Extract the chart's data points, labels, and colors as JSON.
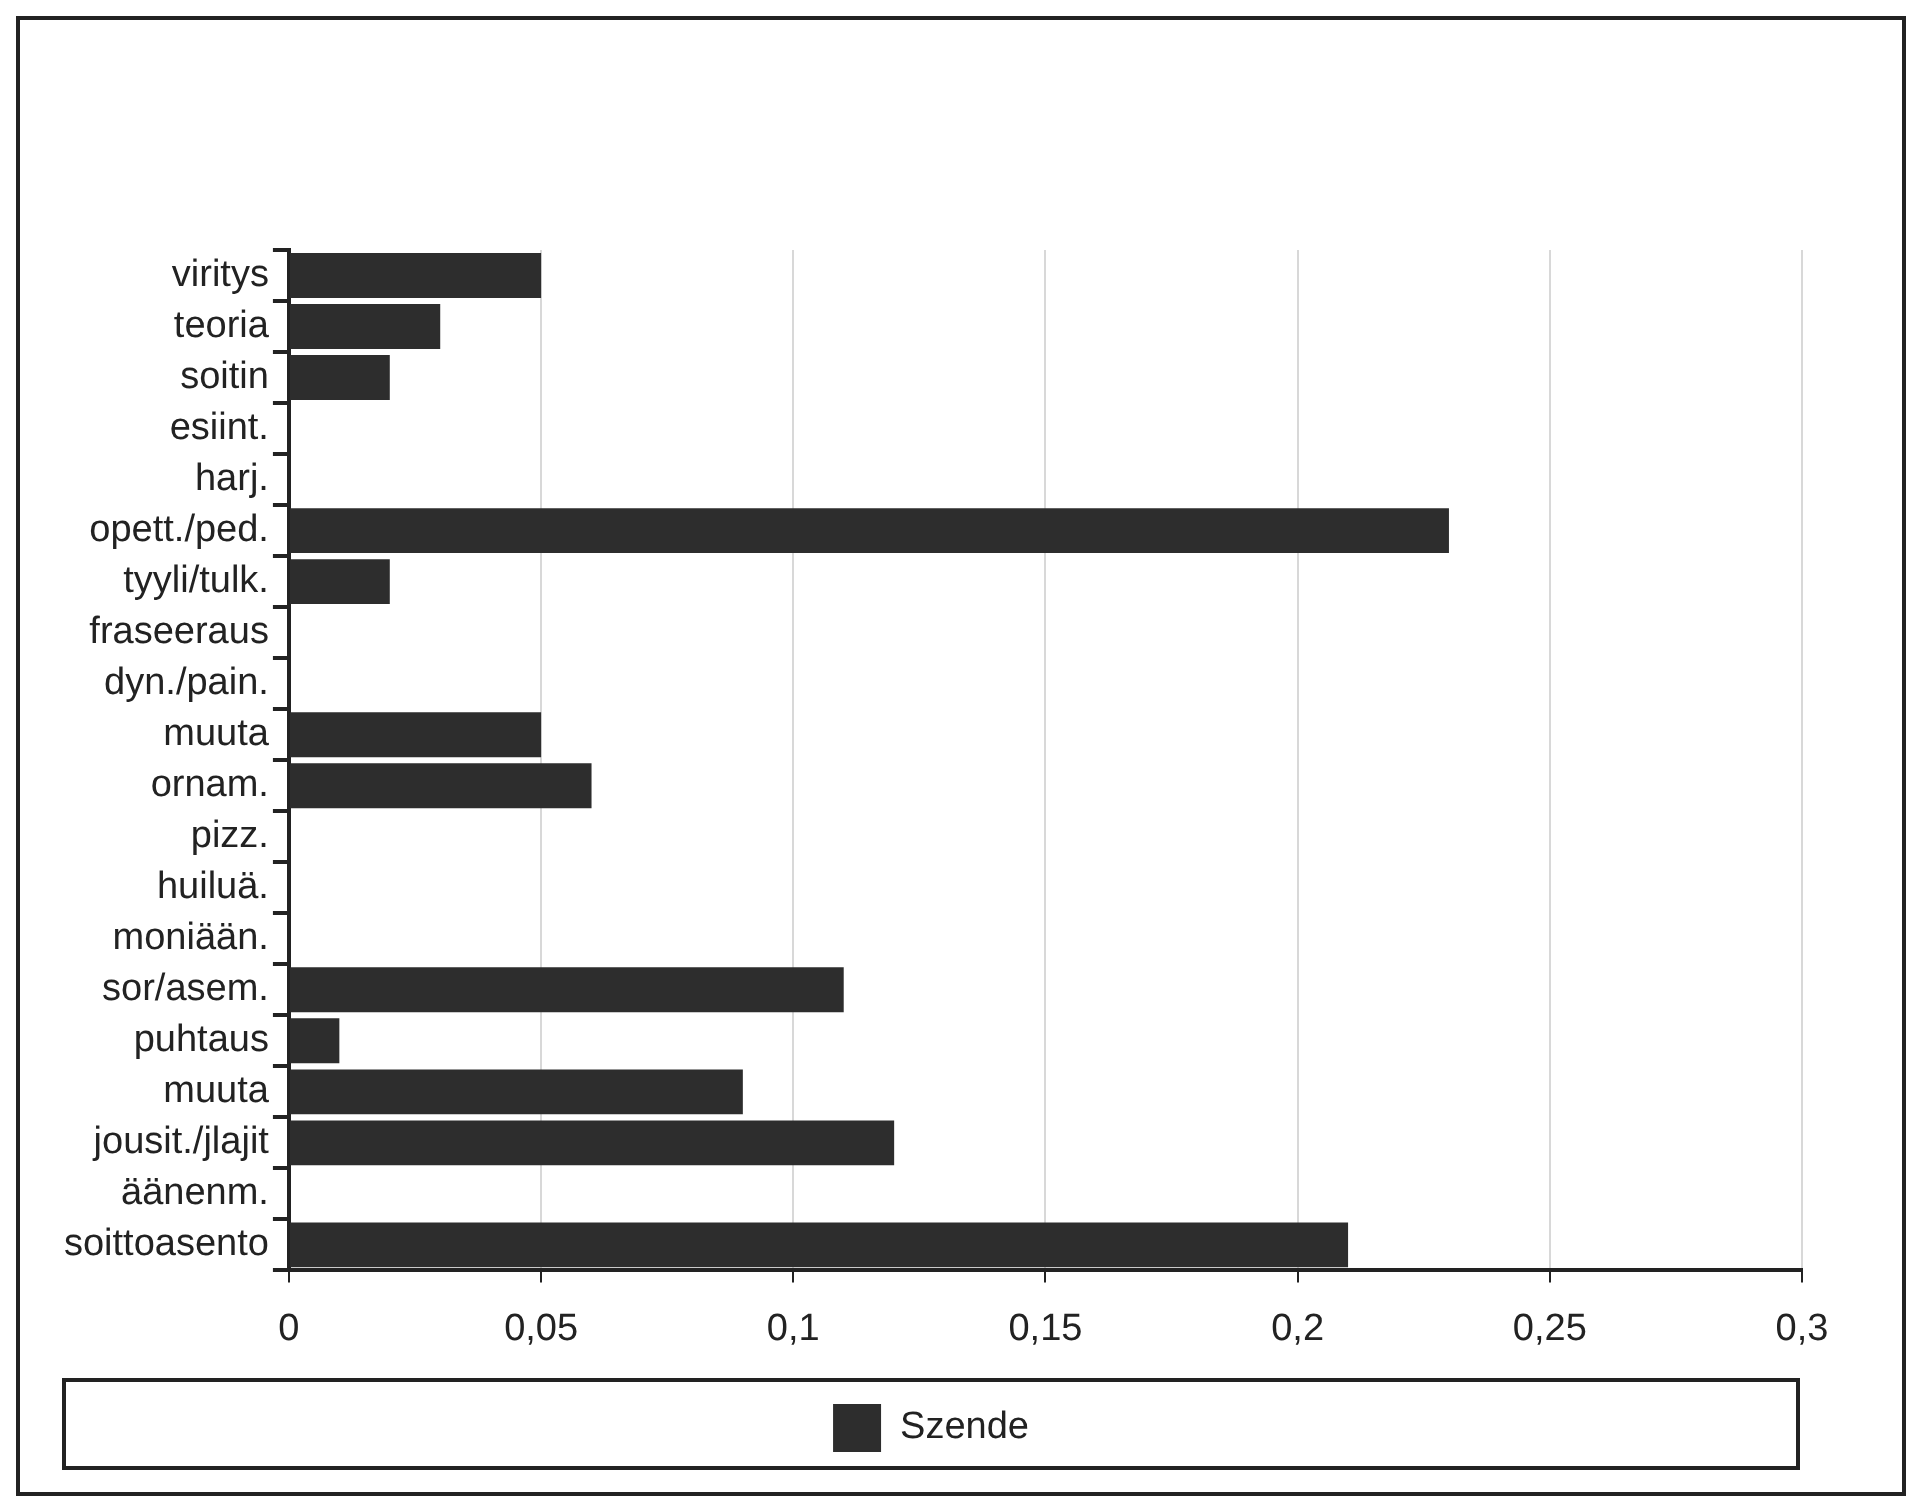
{
  "chart_data": {
    "type": "bar",
    "orientation": "horizontal",
    "categories": [
      "viritys",
      "teoria",
      "soitin",
      "esiint.",
      "harj.",
      "opett./ped.",
      "tyyli/tulk.",
      "fraseeraus",
      "dyn./pain.",
      "muuta",
      "ornam.",
      "pizz.",
      "huiluä.",
      "moniään.",
      "sor/asem.",
      "puhtaus",
      "muuta",
      "jousit./jlajit",
      "äänenm.",
      "soittoasento"
    ],
    "series": [
      {
        "name": "Szende",
        "color": "#2d2d2d",
        "values": [
          0.05,
          0.03,
          0.02,
          0,
          0,
          0.23,
          0.02,
          0,
          0,
          0.05,
          0.06,
          0,
          0,
          0,
          0.11,
          0.01,
          0.09,
          0.12,
          0,
          0.21
        ]
      }
    ],
    "xlim": [
      0,
      0.3
    ],
    "xticks": [
      {
        "value": 0,
        "label": "0"
      },
      {
        "value": 0.05,
        "label": "0,05"
      },
      {
        "value": 0.1,
        "label": "0,1"
      },
      {
        "value": 0.15,
        "label": "0,15"
      },
      {
        "value": 0.2,
        "label": "0,2"
      },
      {
        "value": 0.25,
        "label": "0,25"
      },
      {
        "value": 0.3,
        "label": "0,3"
      }
    ],
    "grid": "x",
    "legend": "bottom"
  }
}
